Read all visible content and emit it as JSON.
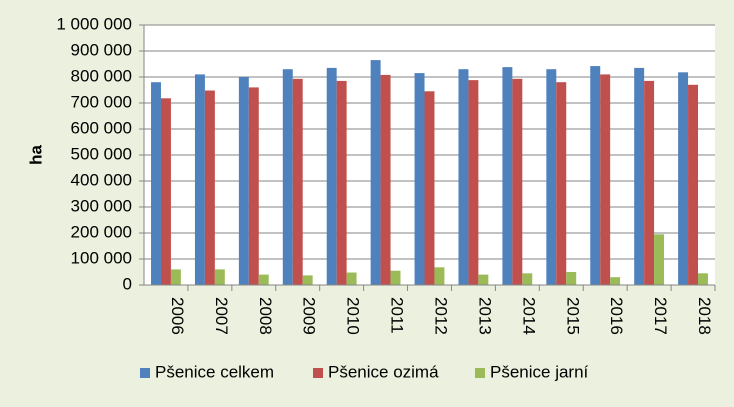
{
  "chart_data": {
    "type": "bar",
    "title": "",
    "xlabel": "",
    "ylabel": "ha",
    "ylim": [
      0,
      1000000
    ],
    "y_ticks": [
      0,
      100000,
      200000,
      300000,
      400000,
      500000,
      600000,
      700000,
      800000,
      900000,
      1000000
    ],
    "y_tick_labels": [
      "0",
      "100 000",
      "200 000",
      "300 000",
      "400 000",
      "500 000",
      "600 000",
      "700 000",
      "800 000",
      "900 000",
      "1 000 000"
    ],
    "grid": true,
    "legend_position": "bottom",
    "x_tick_rotation": "vertical",
    "categories": [
      "2006",
      "2007",
      "2008",
      "2009",
      "2010",
      "2011",
      "2012",
      "2013",
      "2014",
      "2015",
      "2016",
      "2017",
      "2018"
    ],
    "series": [
      {
        "name": "Pšenice celkem",
        "color": "#4f81bd",
        "values": [
          780000,
          810000,
          800000,
          830000,
          835000,
          865000,
          815000,
          830000,
          838000,
          830000,
          842000,
          835000,
          818000
        ]
      },
      {
        "name": "Pšenice ozimá",
        "color": "#c0504d",
        "values": [
          718000,
          748000,
          760000,
          793000,
          785000,
          808000,
          745000,
          788000,
          793000,
          780000,
          810000,
          785000,
          770000
        ]
      },
      {
        "name": "Pšenice jarní",
        "color": "#9bbb59",
        "values": [
          60000,
          60000,
          40000,
          37000,
          48000,
          55000,
          68000,
          40000,
          45000,
          50000,
          30000,
          195000,
          45000
        ]
      }
    ]
  }
}
